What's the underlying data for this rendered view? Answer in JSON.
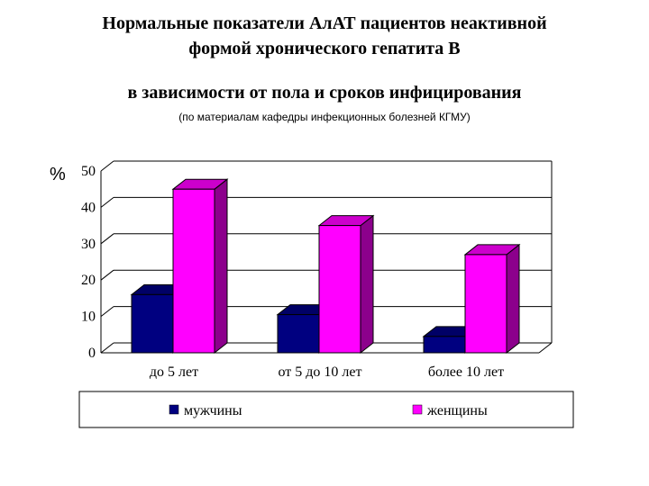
{
  "header": {
    "title_line1": "Нормальные показатели АлАТ пациентов неактивной",
    "title_line2": "формой хронического гепатита В",
    "subtitle": "в зависимости от пола и сроков инфицирования",
    "source": "(по материалам кафедры инфекционных болезней КГМУ)"
  },
  "chart_data": {
    "type": "bar",
    "title": "",
    "ylabel": "%",
    "xlabel": "",
    "ylim": [
      0,
      50
    ],
    "yticks": [
      0,
      10,
      20,
      30,
      40,
      50
    ],
    "categories": [
      "до 5 лет",
      "от 5 до 10 лет",
      "более 10 лет"
    ],
    "series": [
      {
        "name": "мужчины",
        "values": [
          16,
          10.5,
          4.5
        ],
        "color": "#000080"
      },
      {
        "name": "женщины",
        "values": [
          45,
          35,
          27
        ],
        "color": "#ff00ff"
      }
    ],
    "grid": true,
    "legend_position": "bottom"
  }
}
